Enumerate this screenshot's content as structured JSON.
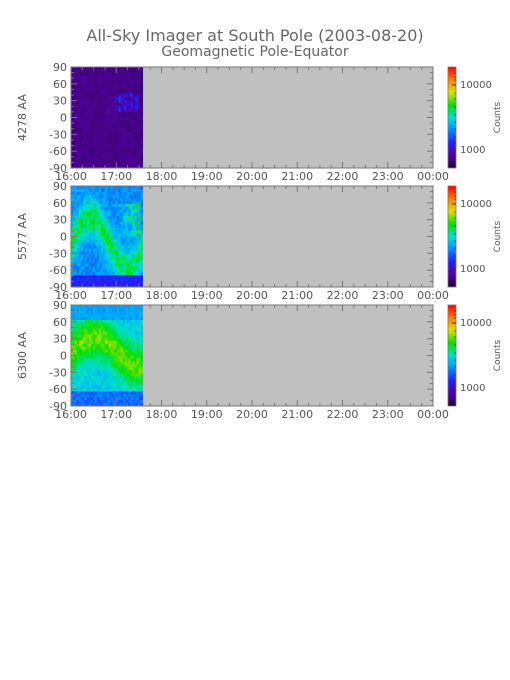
{
  "title": "All-Sky Imager at South Pole (2003-08-20)",
  "subtitle": "Geomagnetic Pole-Equator",
  "colorbar_label": "Counts",
  "colorbar_ticks": [
    "10000",
    "1000"
  ],
  "colors": {
    "no_data": "#c0c0c0",
    "axis": "#777777",
    "colormap": [
      "#200030",
      "#5000a0",
      "#3030ff",
      "#00a0ff",
      "#00e0d0",
      "#00e000",
      "#e0e000",
      "#ff8000",
      "#ff0000"
    ]
  },
  "chart_data": [
    {
      "type": "heatmap",
      "ylabel": "4278 AA",
      "x_ticks": [
        "16:00",
        "17:00",
        "18:00",
        "19:00",
        "20:00",
        "21:00",
        "22:00",
        "23:00",
        "00:00"
      ],
      "y_ticks": [
        90,
        60,
        30,
        0,
        -30,
        -60,
        -90
      ],
      "ylim": [
        -90,
        90
      ],
      "data_extent": [
        "16:00",
        "17:35"
      ],
      "colorbar_ticks": [
        "10000",
        "1000"
      ],
      "colorbar_label": "Counts"
    },
    {
      "type": "heatmap",
      "ylabel": "5577 AA",
      "x_ticks": [
        "16:00",
        "17:00",
        "18:00",
        "19:00",
        "20:00",
        "21:00",
        "22:00",
        "23:00",
        "00:00"
      ],
      "y_ticks": [
        90,
        60,
        30,
        0,
        -30,
        -60,
        -90
      ],
      "ylim": [
        -90,
        90
      ],
      "data_extent": [
        "16:00",
        "17:35"
      ],
      "colorbar_ticks": [
        "10000",
        "1000"
      ],
      "colorbar_label": "Counts"
    },
    {
      "type": "heatmap",
      "ylabel": "6300 AA",
      "x_ticks": [
        "16:00",
        "17:00",
        "18:00",
        "19:00",
        "20:00",
        "21:00",
        "22:00",
        "23:00",
        "00:00"
      ],
      "y_ticks": [
        90,
        60,
        30,
        0,
        -30,
        -60,
        -90
      ],
      "ylim": [
        -90,
        90
      ],
      "data_extent": [
        "16:00",
        "17:35"
      ],
      "colorbar_ticks": [
        "10000",
        "1000"
      ],
      "colorbar_label": "Counts"
    }
  ]
}
